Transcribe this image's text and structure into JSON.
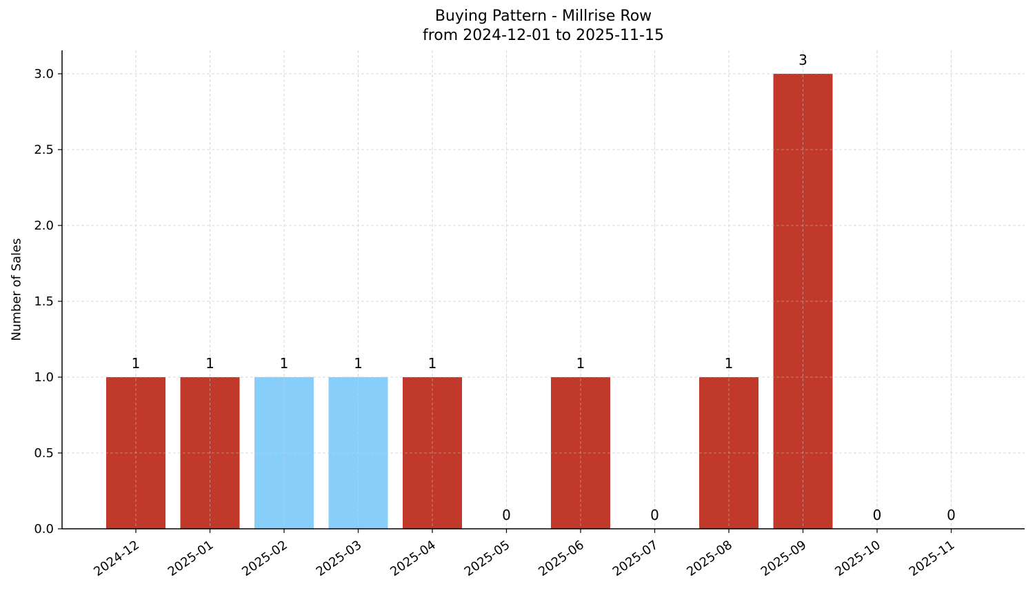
{
  "chart_data": {
    "type": "bar",
    "title": "Buying Pattern - Millrise Row",
    "subtitle": "from 2024-12-01 to 2025-11-15",
    "xlabel": "",
    "ylabel": "Number of Sales",
    "ylim": [
      0,
      3.15
    ],
    "yticks": [
      "0.0",
      "0.5",
      "1.0",
      "1.5",
      "2.0",
      "2.5",
      "3.0"
    ],
    "grid": true,
    "legend": null,
    "categories": [
      "2024-12",
      "2025-01",
      "2025-02",
      "2025-03",
      "2025-04",
      "2025-05",
      "2025-06",
      "2025-07",
      "2025-08",
      "2025-09",
      "2025-10",
      "2025-11"
    ],
    "values": [
      1,
      1,
      1,
      1,
      1,
      0,
      1,
      0,
      1,
      3,
      0,
      0
    ],
    "bar_colors": [
      "#c0392b",
      "#c0392b",
      "#87cefa",
      "#87cefa",
      "#c0392b",
      "#c0392b",
      "#c0392b",
      "#c0392b",
      "#c0392b",
      "#c0392b",
      "#c0392b",
      "#c0392b"
    ],
    "data_labels": [
      "1",
      "1",
      "1",
      "1",
      "1",
      "0",
      "1",
      "0",
      "1",
      "3",
      "0",
      "0"
    ]
  },
  "colors": {
    "primary_bar": "#c0392b",
    "highlight_bar": "#87cefa",
    "grid": "#d3d3d3",
    "axis": "#000000"
  }
}
